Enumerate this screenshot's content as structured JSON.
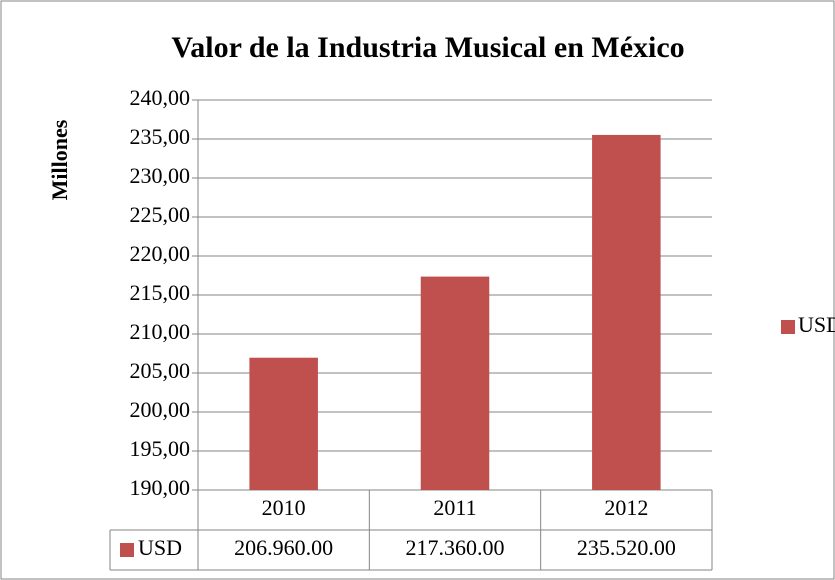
{
  "chart_data": {
    "type": "bar",
    "title": "Valor de la Industria Musical en México",
    "y_label": "Millones",
    "categories": [
      "2010",
      "2011",
      "2012"
    ],
    "series": [
      {
        "name": "USD",
        "color": "#c0504d",
        "values": [
          206.96,
          217.36,
          235.52
        ],
        "value_labels": [
          "206.960.00",
          "217.360.00",
          "235.520.00"
        ]
      }
    ],
    "ylim": [
      190,
      240
    ],
    "yticks": [
      {
        "value": 190,
        "label": "190,00"
      },
      {
        "value": 195,
        "label": "195,00"
      },
      {
        "value": 200,
        "label": "200,00"
      },
      {
        "value": 205,
        "label": "205,00"
      },
      {
        "value": 210,
        "label": "210,00"
      },
      {
        "value": 215,
        "label": "215,00"
      },
      {
        "value": 220,
        "label": "220,00"
      },
      {
        "value": 225,
        "label": "225,00"
      },
      {
        "value": 230,
        "label": "230,00"
      },
      {
        "value": 235,
        "label": "235,00"
      },
      {
        "value": 240,
        "label": "240,00"
      }
    ],
    "grid": true,
    "legend": "right",
    "data_table": true
  }
}
